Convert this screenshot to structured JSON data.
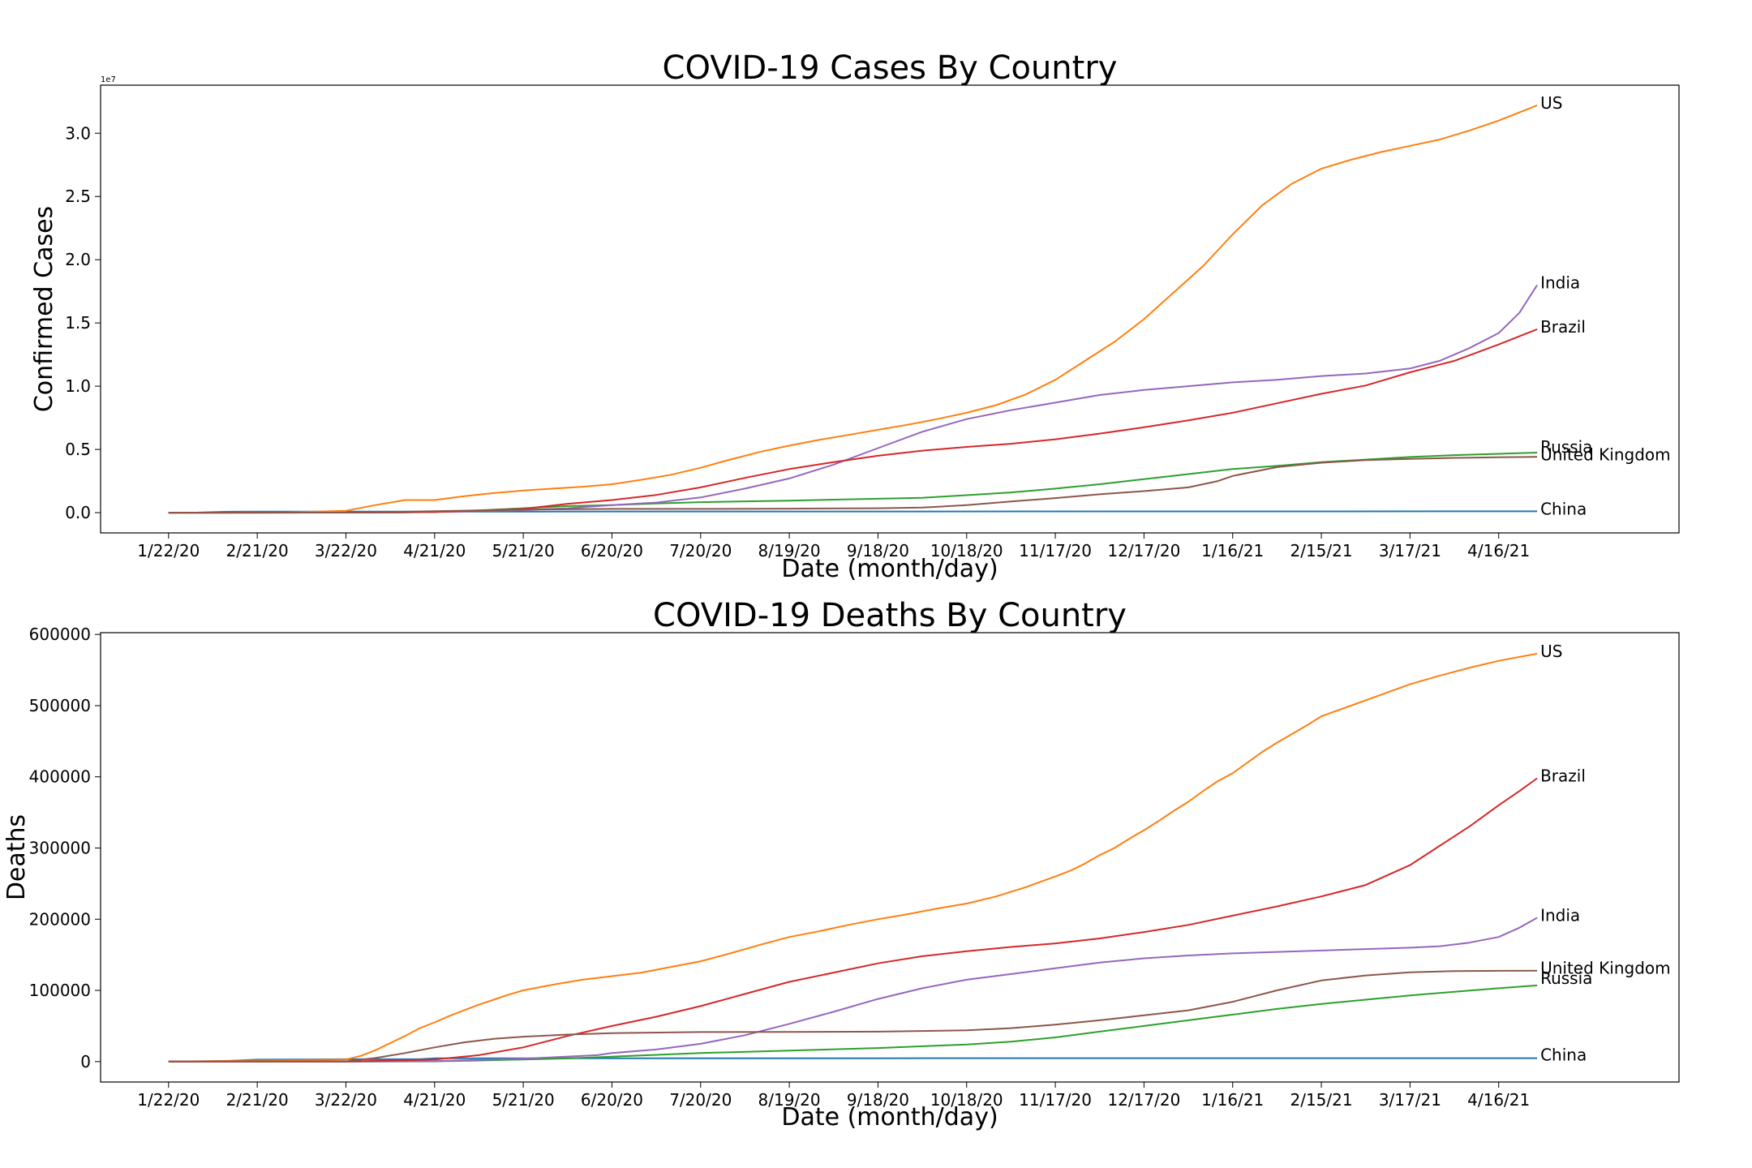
{
  "chart_data": [
    {
      "type": "line",
      "title": "COVID-19 Cases By Country",
      "xlabel": "Date (month/day)",
      "ylabel": "Confirmed Cases",
      "y_offset_label": "1e7",
      "ylim": [
        -0.16,
        3.38
      ],
      "xlim": [
        -23,
        511
      ],
      "x_ticks": [
        "1/22/20",
        "2/21/20",
        "3/22/20",
        "4/21/20",
        "5/21/20",
        "6/20/20",
        "7/20/20",
        "8/19/20",
        "9/18/20",
        "10/18/20",
        "11/17/20",
        "12/17/20",
        "1/16/21",
        "2/15/21",
        "3/17/21",
        "4/16/21"
      ],
      "x_tick_days": [
        0,
        30,
        60,
        90,
        120,
        150,
        180,
        210,
        240,
        270,
        300,
        330,
        360,
        390,
        420,
        450
      ],
      "y_ticks": [
        0.0,
        0.5,
        1.0,
        1.5,
        2.0,
        2.5,
        3.0
      ],
      "y_tick_labels": [
        "0.0",
        "0.5",
        "1.0",
        "1.5",
        "2.0",
        "2.5",
        "3.0"
      ],
      "grid": false,
      "legend": "none",
      "series": [
        {
          "name": "China",
          "color": "#1f77b4",
          "x": [
            0,
            10,
            20,
            30,
            60,
            120,
            240,
            360,
            463
          ],
          "values": [
            0.0005,
            0.001,
            0.0075,
            0.008,
            0.008,
            0.0085,
            0.009,
            0.0097,
            0.0103
          ]
        },
        {
          "name": "Russia",
          "color": "#2ca02c",
          "x": [
            0,
            60,
            75,
            90,
            105,
            120,
            135,
            150,
            165,
            180,
            210,
            240,
            255,
            270,
            285,
            300,
            315,
            330,
            345,
            360,
            375,
            390,
            405,
            420,
            435,
            450,
            463
          ],
          "values": [
            0,
            0.0001,
            0.001,
            0.005,
            0.018,
            0.035,
            0.052,
            0.06,
            0.073,
            0.083,
            0.095,
            0.11,
            0.118,
            0.138,
            0.16,
            0.19,
            0.225,
            0.265,
            0.305,
            0.345,
            0.37,
            0.4,
            0.42,
            0.44,
            0.455,
            0.465,
            0.475
          ]
        },
        {
          "name": "US",
          "color": "#ff7f0e",
          "x": [
            0,
            40,
            60,
            70,
            80,
            90,
            100,
            110,
            120,
            130,
            140,
            150,
            160,
            170,
            180,
            190,
            200,
            210,
            220,
            230,
            240,
            250,
            260,
            270,
            280,
            290,
            300,
            310,
            320,
            330,
            340,
            350,
            360,
            370,
            380,
            390,
            400,
            410,
            420,
            430,
            440,
            450,
            463
          ],
          "values": [
            0,
            0.0015,
            0.015,
            0.06,
            0.1,
            0.1,
            0.13,
            0.155,
            0.175,
            0.19,
            0.205,
            0.225,
            0.26,
            0.3,
            0.355,
            0.42,
            0.48,
            0.53,
            0.575,
            0.615,
            0.655,
            0.695,
            0.74,
            0.79,
            0.85,
            0.935,
            1.05,
            1.2,
            1.35,
            1.53,
            1.74,
            1.95,
            2.2,
            2.43,
            2.6,
            2.72,
            2.79,
            2.85,
            2.9,
            2.95,
            3.02,
            3.1,
            3.22
          ]
        },
        {
          "name": "India",
          "color": "#9467bd",
          "x": [
            0,
            60,
            80,
            100,
            120,
            135,
            150,
            165,
            180,
            195,
            210,
            225,
            240,
            255,
            270,
            285,
            300,
            315,
            330,
            345,
            360,
            375,
            390,
            405,
            420,
            430,
            440,
            450,
            457,
            463
          ],
          "values": [
            0,
            0.0005,
            0.002,
            0.01,
            0.02,
            0.035,
            0.06,
            0.08,
            0.12,
            0.19,
            0.27,
            0.38,
            0.51,
            0.64,
            0.74,
            0.81,
            0.87,
            0.93,
            0.97,
            1.0,
            1.03,
            1.05,
            1.08,
            1.1,
            1.14,
            1.2,
            1.3,
            1.42,
            1.58,
            1.8
          ]
        },
        {
          "name": "Brazil",
          "color": "#d62728",
          "x": [
            0,
            60,
            90,
            105,
            120,
            135,
            150,
            165,
            180,
            195,
            210,
            225,
            240,
            255,
            270,
            285,
            300,
            315,
            330,
            345,
            360,
            375,
            390,
            405,
            420,
            435,
            450,
            463
          ],
          "values": [
            0,
            0.0005,
            0.005,
            0.015,
            0.03,
            0.07,
            0.1,
            0.14,
            0.2,
            0.275,
            0.345,
            0.4,
            0.45,
            0.49,
            0.52,
            0.545,
            0.58,
            0.625,
            0.675,
            0.73,
            0.79,
            0.865,
            0.94,
            1.005,
            1.11,
            1.2,
            1.33,
            1.45
          ]
        },
        {
          "name": "United Kingdom",
          "color": "#8c564b",
          "x": [
            0,
            60,
            75,
            90,
            105,
            120,
            150,
            180,
            210,
            240,
            255,
            270,
            285,
            300,
            315,
            330,
            345,
            355,
            360,
            375,
            390,
            405,
            420,
            435,
            450,
            463
          ],
          "values": [
            0,
            0.0005,
            0.005,
            0.012,
            0.018,
            0.025,
            0.03,
            0.03,
            0.032,
            0.035,
            0.04,
            0.06,
            0.088,
            0.115,
            0.145,
            0.17,
            0.2,
            0.25,
            0.29,
            0.36,
            0.395,
            0.415,
            0.425,
            0.433,
            0.438,
            0.441
          ]
        }
      ],
      "series_labels": [
        {
          "name": "US",
          "value": 3.22
        },
        {
          "name": "India",
          "value": 1.8
        },
        {
          "name": "Brazil",
          "value": 1.45
        },
        {
          "name": "Russia",
          "value": 0.5
        },
        {
          "name": "United Kingdom",
          "value": 0.44
        },
        {
          "name": "China",
          "value": 0.0103
        }
      ]
    },
    {
      "type": "line",
      "title": "COVID-19 Deaths By Country",
      "xlabel": "Date (month/day)",
      "ylabel": "Deaths",
      "ylim": [
        -28700,
        602500
      ],
      "xlim": [
        -23,
        511
      ],
      "x_ticks": [
        "1/22/20",
        "2/21/20",
        "3/22/20",
        "4/21/20",
        "5/21/20",
        "6/20/20",
        "7/20/20",
        "8/19/20",
        "9/18/20",
        "10/18/20",
        "11/17/20",
        "12/17/20",
        "1/16/21",
        "2/15/21",
        "3/17/21",
        "4/16/21"
      ],
      "x_tick_days": [
        0,
        30,
        60,
        90,
        120,
        150,
        180,
        210,
        240,
        270,
        300,
        330,
        360,
        390,
        420,
        450
      ],
      "y_ticks": [
        0,
        100000,
        200000,
        300000,
        400000,
        500000,
        600000
      ],
      "y_tick_labels": [
        "0",
        "100000",
        "200000",
        "300000",
        "400000",
        "500000",
        "600000"
      ],
      "grid": false,
      "legend": "none",
      "series": [
        {
          "name": "China",
          "color": "#1f77b4",
          "x": [
            0,
            10,
            20,
            30,
            45,
            60,
            85,
            90,
            120,
            240,
            360,
            463
          ],
          "values": [
            20,
            200,
            900,
            2800,
            3100,
            3300,
            3340,
            4630,
            4630,
            4700,
            4800,
            4850
          ]
        },
        {
          "name": "Russia",
          "color": "#2ca02c",
          "x": [
            0,
            70,
            90,
            105,
            120,
            135,
            150,
            165,
            180,
            210,
            240,
            270,
            285,
            300,
            315,
            330,
            345,
            360,
            375,
            390,
            405,
            420,
            435,
            450,
            463
          ],
          "values": [
            0,
            50,
            400,
            1500,
            3000,
            4500,
            7000,
            9500,
            12000,
            15500,
            19000,
            24000,
            28000,
            34000,
            42000,
            50000,
            58000,
            66000,
            74000,
            81000,
            87000,
            93000,
            98000,
            103000,
            107000
          ]
        },
        {
          "name": "US",
          "color": "#ff7f0e",
          "x": [
            0,
            60,
            65,
            70,
            75,
            80,
            85,
            90,
            95,
            100,
            105,
            110,
            115,
            120,
            130,
            140,
            150,
            160,
            170,
            180,
            190,
            200,
            210,
            220,
            230,
            240,
            250,
            260,
            270,
            280,
            290,
            300,
            305,
            310,
            315,
            320,
            325,
            330,
            335,
            340,
            345,
            350,
            355,
            360,
            365,
            370,
            375,
            380,
            385,
            390,
            400,
            410,
            420,
            430,
            440,
            450,
            463
          ],
          "values": [
            0,
            3000,
            8000,
            16000,
            26000,
            36000,
            47000,
            55000,
            64000,
            72000,
            80000,
            87000,
            94000,
            100000,
            108000,
            115000,
            120000,
            125000,
            133000,
            141000,
            152000,
            164000,
            175000,
            183000,
            192000,
            200000,
            207000,
            215000,
            222000,
            232000,
            245000,
            260000,
            268000,
            278000,
            290000,
            300000,
            313000,
            325000,
            338000,
            352000,
            365000,
            380000,
            394000,
            405000,
            420000,
            435000,
            448000,
            460000,
            472000,
            485000,
            500000,
            515000,
            530000,
            542000,
            553000,
            563000,
            573000
          ]
        },
        {
          "name": "India",
          "color": "#9467bd",
          "x": [
            0,
            60,
            90,
            120,
            145,
            150,
            165,
            180,
            195,
            210,
            225,
            240,
            255,
            270,
            285,
            300,
            315,
            330,
            345,
            360,
            375,
            390,
            405,
            420,
            430,
            440,
            450,
            457,
            463
          ],
          "values": [
            0,
            10,
            600,
            4000,
            9000,
            12000,
            17000,
            25000,
            37000,
            53000,
            70000,
            88000,
            103000,
            115000,
            123000,
            131000,
            139000,
            145000,
            149000,
            152000,
            154000,
            156000,
            158000,
            160000,
            162000,
            167000,
            175000,
            188000,
            202000
          ]
        },
        {
          "name": "Brazil",
          "color": "#d62728",
          "x": [
            0,
            60,
            90,
            105,
            120,
            135,
            150,
            165,
            180,
            195,
            210,
            225,
            240,
            255,
            270,
            285,
            300,
            315,
            330,
            345,
            360,
            375,
            390,
            405,
            420,
            430,
            440,
            450,
            457,
            463
          ],
          "values": [
            0,
            100,
            3000,
            9000,
            20000,
            36000,
            50000,
            63000,
            78000,
            95000,
            112000,
            125000,
            138000,
            148000,
            155000,
            161000,
            166000,
            173000,
            182000,
            192000,
            205000,
            218000,
            232000,
            248000,
            276000,
            303000,
            330000,
            360000,
            380000,
            398000
          ]
        },
        {
          "name": "United Kingdom",
          "color": "#8c564b",
          "x": [
            0,
            60,
            70,
            80,
            90,
            100,
            110,
            120,
            135,
            150,
            180,
            210,
            240,
            270,
            285,
            300,
            315,
            330,
            345,
            360,
            375,
            390,
            405,
            420,
            435,
            450,
            463
          ],
          "values": [
            0,
            400,
            5000,
            12000,
            20000,
            27000,
            32000,
            35000,
            38000,
            40000,
            41500,
            41700,
            42000,
            44000,
            47000,
            52000,
            58000,
            65000,
            72000,
            84000,
            100000,
            114000,
            121000,
            125500,
            127000,
            127500,
            127700
          ]
        }
      ],
      "series_labels": [
        {
          "name": "US",
          "value": 573000
        },
        {
          "name": "Brazil",
          "value": 398000
        },
        {
          "name": "India",
          "value": 202000
        },
        {
          "name": "United Kingdom",
          "value": 127700
        },
        {
          "name": "Russia",
          "value": 114000
        },
        {
          "name": "China",
          "value": 6000
        }
      ]
    }
  ]
}
